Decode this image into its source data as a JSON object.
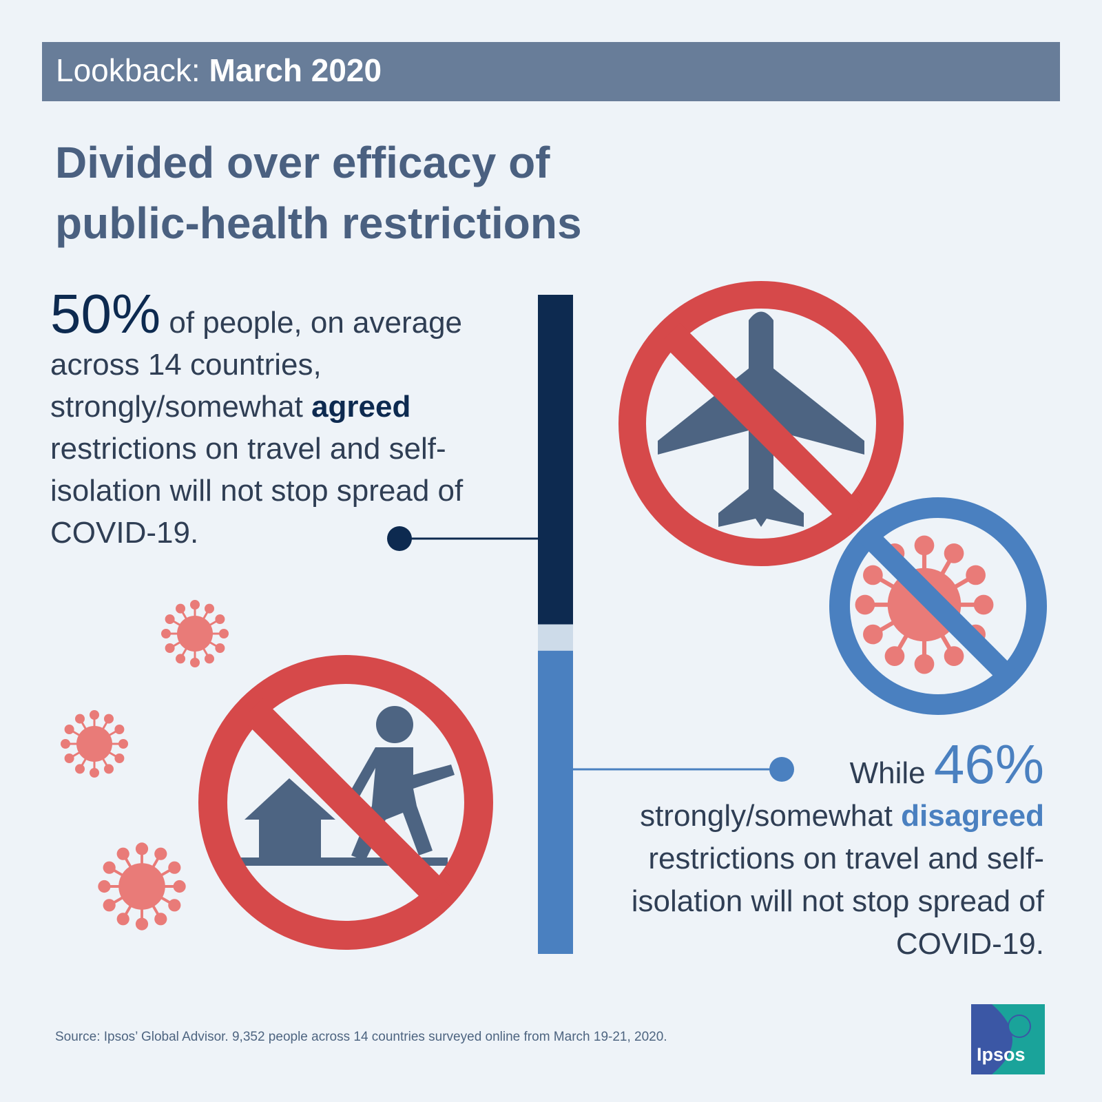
{
  "banner": {
    "prefix": "Lookback:",
    "date": "March 2020"
  },
  "title": {
    "line1": "Divided over efficacy of",
    "line2": "public-health restrictions"
  },
  "agree_block": {
    "percent": "50%",
    "text_a": "of people, on average across 14 countries, strongly/somewhat",
    "keyword": "agreed",
    "text_b": "restrictions on travel and self-isolation will not stop spread of COVID-19."
  },
  "disagree_block": {
    "prefix": "While",
    "percent": "46%",
    "text_a": "strongly/somewhat",
    "keyword": "disagreed",
    "text_b": "restrictions on travel and self-isolation will not stop spread of COVID-19."
  },
  "source": "Source: Ipsos’ Global Advisor. 9,352 people across 14 countries surveyed online from March 19-21, 2020.",
  "logo": {
    "text": "Ipsos"
  },
  "colors": {
    "agree": "#0d2a50",
    "disagree": "#4a80c0",
    "neutral": "#cddbe9",
    "prohibition_red": "#d6494a",
    "virus": "#e97b78"
  },
  "icons": [
    "no-travel-plane-icon",
    "no-virus-icon",
    "no-leaving-home-icon",
    "virus-icon"
  ],
  "chart_data": {
    "type": "bar",
    "stacked": true,
    "orientation": "vertical",
    "categories": [
      "agreed",
      "other",
      "disagreed"
    ],
    "values": [
      50,
      4,
      46
    ],
    "unit": "%"
  }
}
